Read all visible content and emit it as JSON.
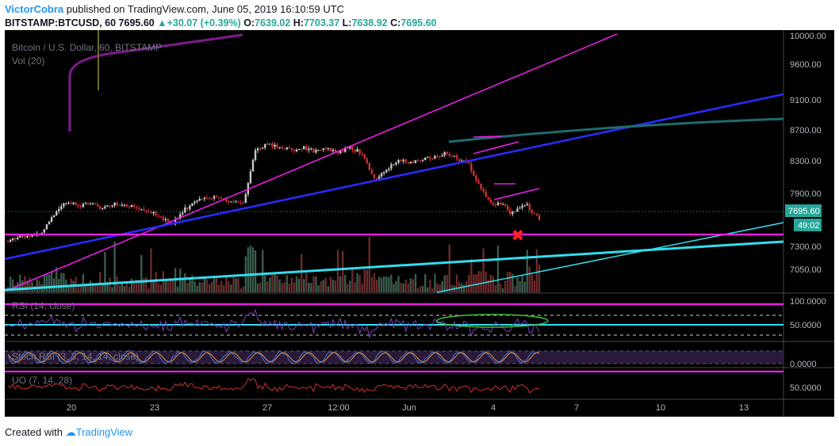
{
  "header": {
    "author": "VictorCobra",
    "published_text": "published on TradingView.com, June 05, 2019 16:10:59 UTC",
    "symbol": "BITSTAMP:BTCUSD, 60",
    "last": "7695.60",
    "change_arrow": "▲",
    "change": "+30.07 (+0.39%)",
    "o_label": "O:",
    "o_value": "7639.02",
    "h_label": "H:",
    "h_value": "7703.37",
    "l_label": "L:",
    "l_value": "7638.92",
    "c_label": "C:",
    "c_value": "7695.60"
  },
  "chart": {
    "title": "Bitcoin / U.S. Dollar, 60, BITSTAMP",
    "volume_label": "Vol (20)",
    "rsi_label": "RSI (14, close)",
    "stoch_label": "Stoch RSI (3, 3, 14, 14, close)",
    "uo_label": "UO (7, 14, 28)",
    "price_badge": "7695.60",
    "timer_badge": "49:02",
    "cross_mark": "✖",
    "colors": {
      "background": "#000000",
      "magenta": "#e91ee6",
      "blue": "#2a2aff",
      "cyan": "#33ddee",
      "teal": "#1e6b6b",
      "purple": "#7a1a8a",
      "candle_up": "#c8c8c8",
      "candle_down": "#d03030",
      "badge": "#26a69a",
      "cross": "#ff2020"
    }
  },
  "chart_data": {
    "type": "line",
    "price_axis_ticks": [
      "10000.00",
      "9600.00",
      "9100.00",
      "8700.00",
      "8300.00",
      "7900.00",
      "7300.00",
      "7050.00"
    ],
    "rsi_axis_ticks": [
      "100.0000",
      "50.0000"
    ],
    "stoch_axis_ticks": [
      "0.0000"
    ],
    "uo_axis_ticks": [
      "50.0000"
    ],
    "x_ticks": [
      "20",
      "23",
      "27",
      "12:00",
      "Jun",
      "4",
      "7",
      "10",
      "13"
    ],
    "series": [
      {
        "values": [
          [
            0,
            7350
          ],
          [
            2,
            7450
          ],
          [
            4,
            7440
          ],
          [
            6,
            7520
          ],
          [
            8,
            7800
          ],
          [
            10,
            7980
          ],
          [
            12,
            7900
          ],
          [
            14,
            7950
          ],
          [
            16,
            7870
          ],
          [
            18,
            7950
          ],
          [
            20,
            7920
          ],
          [
            22,
            7880
          ],
          [
            24,
            7820
          ],
          [
            26,
            7700
          ],
          [
            28,
            7640
          ],
          [
            30,
            7850
          ],
          [
            32,
            7990
          ],
          [
            34,
            8050
          ],
          [
            36,
            8010
          ],
          [
            38,
            7960
          ],
          [
            40,
            7950
          ],
          [
            42,
            8800
          ],
          [
            44,
            8850
          ],
          [
            46,
            8820
          ],
          [
            48,
            8760
          ],
          [
            50,
            8800
          ],
          [
            52,
            8750
          ],
          [
            54,
            8790
          ],
          [
            56,
            8740
          ],
          [
            58,
            8800
          ],
          [
            60,
            8720
          ],
          [
            62,
            8300
          ],
          [
            64,
            8450
          ],
          [
            66,
            8600
          ],
          [
            68,
            8580
          ],
          [
            70,
            8620
          ],
          [
            72,
            8640
          ],
          [
            74,
            8720
          ],
          [
            76,
            8640
          ],
          [
            78,
            8550
          ],
          [
            80,
            8200
          ],
          [
            82,
            7900
          ],
          [
            84,
            7950
          ],
          [
            85,
            7800
          ],
          [
            86,
            7850
          ],
          [
            88,
            7920
          ],
          [
            89,
            7780
          ],
          [
            90,
            7700
          ]
        ]
      }
    ],
    "annotation": "✖",
    "grid": false,
    "legend": "none"
  },
  "footer": {
    "created_with": "Created with",
    "brand": "TradingView"
  }
}
